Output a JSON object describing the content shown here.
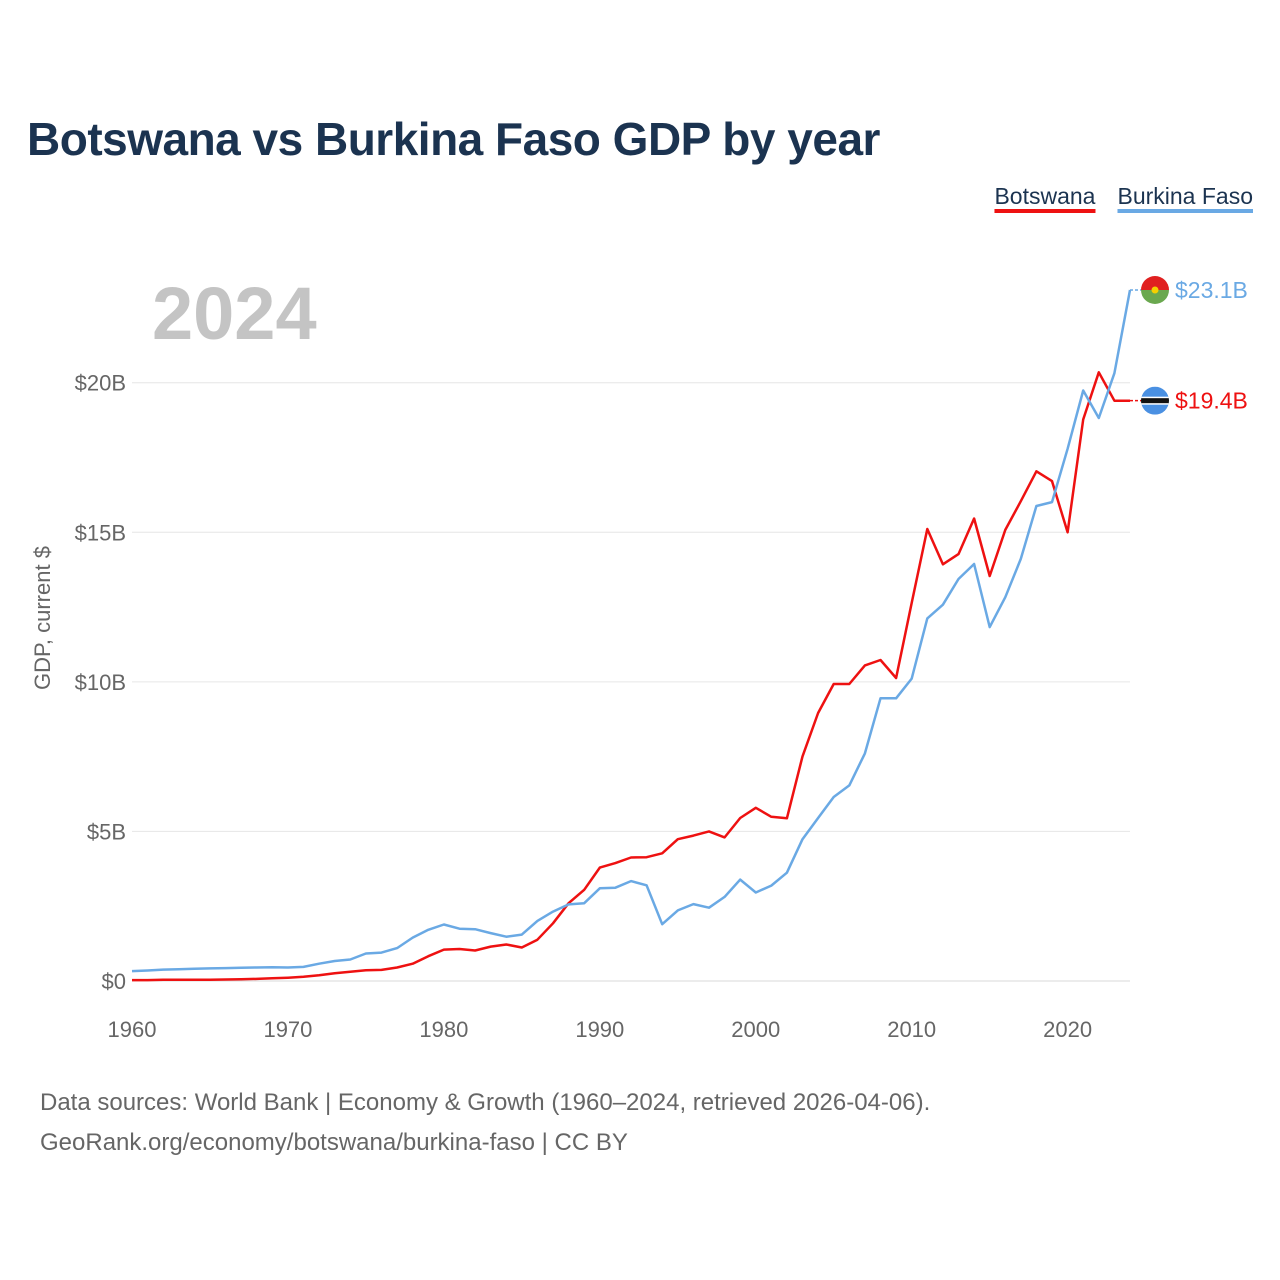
{
  "title": "Botswana vs Burkina Faso GDP by year",
  "year_label": "2024",
  "footer": {
    "line1": "Data sources: World Bank | Economy & Growth (1960–2024, retrieved 2026-04-06).",
    "line2": "GeoRank.org/economy/botswana/burkina-faso | CC BY"
  },
  "chart_data": {
    "type": "line",
    "ylabel": "GDP, current $",
    "xlabel": "",
    "xlim": [
      1960,
      2024
    ],
    "ylim": [
      0,
      23.1
    ],
    "x_ticks": [
      1960,
      1970,
      1980,
      1990,
      2000,
      2010,
      2020
    ],
    "y_ticks": [
      {
        "value": 0,
        "label": "$0"
      },
      {
        "value": 5,
        "label": "$5B"
      },
      {
        "value": 10,
        "label": "$10B"
      },
      {
        "value": 15,
        "label": "$15B"
      },
      {
        "value": 20,
        "label": "$20B"
      }
    ],
    "grid": true,
    "legend_position": "top-right",
    "x": [
      1960,
      1961,
      1962,
      1963,
      1964,
      1965,
      1966,
      1967,
      1968,
      1969,
      1970,
      1971,
      1972,
      1973,
      1974,
      1975,
      1976,
      1977,
      1978,
      1979,
      1980,
      1981,
      1982,
      1983,
      1984,
      1985,
      1986,
      1987,
      1988,
      1989,
      1990,
      1991,
      1992,
      1993,
      1994,
      1995,
      1996,
      1997,
      1998,
      1999,
      2000,
      2001,
      2002,
      2003,
      2004,
      2005,
      2006,
      2007,
      2008,
      2009,
      2010,
      2011,
      2012,
      2013,
      2014,
      2015,
      2016,
      2017,
      2018,
      2019,
      2020,
      2021,
      2022,
      2023,
      2024
    ],
    "series": [
      {
        "name": "Botswana",
        "color": "#ee1111",
        "end_label": "$19.4B",
        "flag": "botswana-flag",
        "values": [
          0.03,
          0.03,
          0.04,
          0.04,
          0.04,
          0.04,
          0.05,
          0.06,
          0.07,
          0.09,
          0.11,
          0.14,
          0.19,
          0.26,
          0.31,
          0.36,
          0.37,
          0.45,
          0.58,
          0.83,
          1.05,
          1.07,
          1.02,
          1.15,
          1.22,
          1.12,
          1.38,
          1.93,
          2.6,
          3.05,
          3.79,
          3.94,
          4.13,
          4.14,
          4.27,
          4.74,
          4.86,
          5.0,
          4.8,
          5.45,
          5.79,
          5.49,
          5.44,
          7.51,
          8.96,
          9.93,
          9.93,
          10.55,
          10.73,
          10.13,
          12.64,
          15.11,
          13.93,
          14.27,
          15.46,
          13.54,
          15.08,
          16.04,
          17.04,
          16.71,
          15.0,
          18.77,
          20.35,
          19.4,
          19.4
        ]
      },
      {
        "name": "Burkina Faso",
        "color": "#6aa9e4",
        "end_label": "$23.1B",
        "flag": "burkina-faso-flag",
        "values": [
          0.33,
          0.35,
          0.38,
          0.39,
          0.41,
          0.42,
          0.43,
          0.44,
          0.45,
          0.46,
          0.45,
          0.47,
          0.58,
          0.67,
          0.72,
          0.92,
          0.95,
          1.1,
          1.45,
          1.71,
          1.89,
          1.75,
          1.73,
          1.6,
          1.48,
          1.55,
          2.01,
          2.32,
          2.56,
          2.6,
          3.1,
          3.12,
          3.34,
          3.2,
          1.9,
          2.36,
          2.57,
          2.45,
          2.81,
          3.39,
          2.96,
          3.19,
          3.62,
          4.74,
          5.45,
          6.15,
          6.54,
          7.61,
          9.45,
          9.45,
          10.11,
          12.12,
          12.58,
          13.44,
          13.94,
          11.83,
          12.83,
          14.11,
          15.88,
          16.01,
          17.79,
          19.74,
          18.82,
          20.32,
          23.1
        ]
      }
    ]
  }
}
